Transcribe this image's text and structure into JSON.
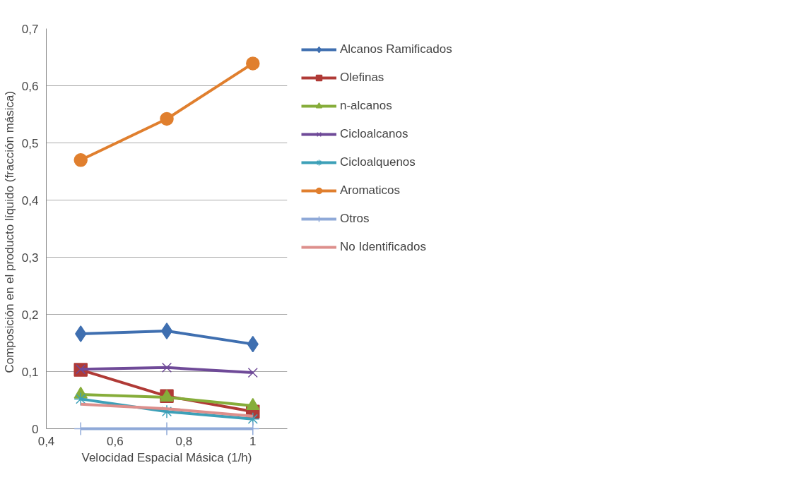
{
  "chart_data": {
    "type": "line",
    "xlabel": "Velocidad Espacial Másica (1/h)",
    "ylabel": "Composición  en  el producto líquido (fracción másica)",
    "x": [
      0.5,
      0.75,
      1
    ],
    "series": [
      {
        "name": "Alcanos Ramificados",
        "color": "#3f6fb0",
        "marker": "diamond",
        "values": [
          0.166,
          0.171,
          0.148
        ]
      },
      {
        "name": "Olefinas",
        "color": "#b03a36",
        "marker": "square",
        "values": [
          0.103,
          0.057,
          0.03
        ]
      },
      {
        "name": "n-alcanos",
        "color": "#86ad3a",
        "marker": "triangle",
        "values": [
          0.06,
          0.055,
          0.04
        ]
      },
      {
        "name": "Cicloalcanos",
        "color": "#6f4a98",
        "marker": "x",
        "values": [
          0.104,
          0.107,
          0.098
        ]
      },
      {
        "name": "Cicloalquenos",
        "color": "#3da0b8",
        "marker": "cross",
        "values": [
          0.052,
          0.03,
          0.017
        ]
      },
      {
        "name": "Aromaticos",
        "color": "#e07f2e",
        "marker": "circle",
        "values": [
          0.47,
          0.542,
          0.639
        ]
      },
      {
        "name": "Otros",
        "color": "#8fa9d8",
        "marker": "cross",
        "values": [
          0,
          0,
          0
        ]
      },
      {
        "name": "No Identificados",
        "color": "#dd8f8c",
        "marker": "none",
        "values": [
          0.043,
          0.035,
          0.022
        ]
      }
    ],
    "xlim": [
      0.4,
      1.1
    ],
    "xticks": [
      {
        "value": 0.4,
        "label": "0,4"
      },
      {
        "value": 0.6,
        "label": "0,6"
      },
      {
        "value": 0.8,
        "label": "0,8"
      },
      1
    ],
    "ylim": [
      0,
      0.7
    ],
    "yticks": [
      0,
      {
        "value": 0.1,
        "label": "0,1"
      },
      {
        "value": 0.2,
        "label": "0,2"
      },
      {
        "value": 0.3,
        "label": "0,3"
      },
      {
        "value": 0.4,
        "label": "0,4"
      },
      {
        "value": 0.5,
        "label": "0,5"
      },
      {
        "value": 0.6,
        "label": "0,6"
      },
      {
        "value": 0.7,
        "label": "0,7"
      }
    ],
    "grid": "y",
    "legend": "right"
  }
}
